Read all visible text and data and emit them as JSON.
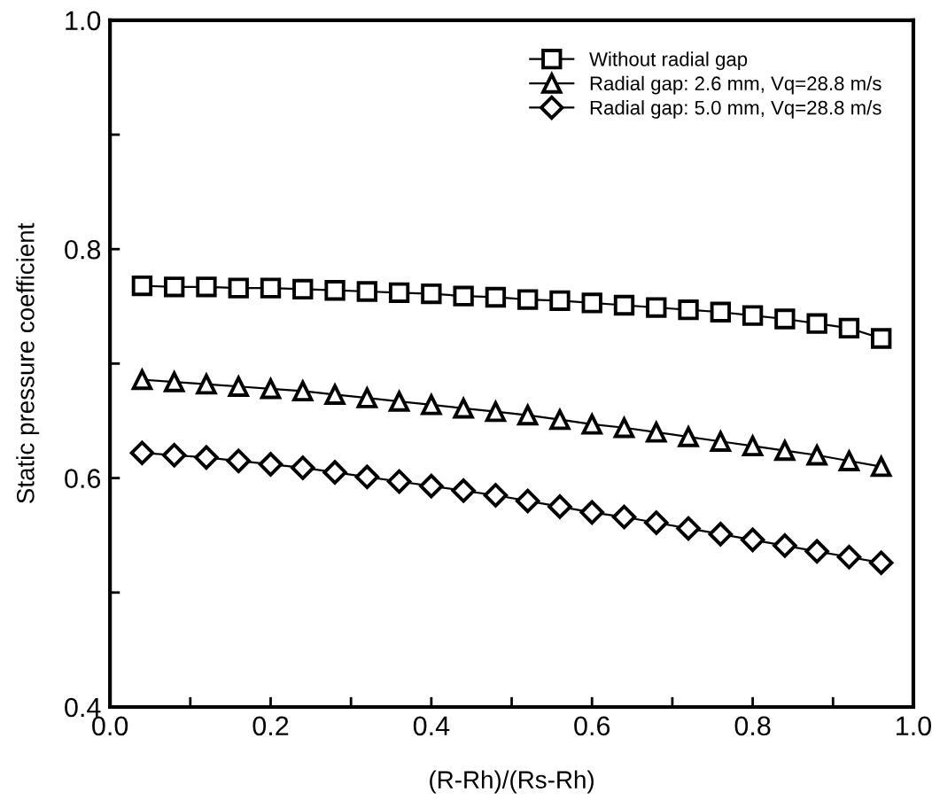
{
  "chart_data": {
    "type": "line",
    "xlabel": "(R-Rh)/(Rs-Rh)",
    "ylabel": "Static pressure coefficient",
    "x": [
      0.04,
      0.08,
      0.12,
      0.16,
      0.2,
      0.24,
      0.28,
      0.32,
      0.36,
      0.4,
      0.44,
      0.48,
      0.52,
      0.56,
      0.6,
      0.64,
      0.68,
      0.72,
      0.76,
      0.8,
      0.84,
      0.88,
      0.92,
      0.96
    ],
    "series": [
      {
        "name": "Without radial gap",
        "color": "#000000",
        "marker": "square",
        "values": [
          0.768,
          0.767,
          0.767,
          0.766,
          0.766,
          0.765,
          0.764,
          0.763,
          0.762,
          0.761,
          0.759,
          0.758,
          0.756,
          0.755,
          0.753,
          0.751,
          0.749,
          0.747,
          0.745,
          0.742,
          0.739,
          0.735,
          0.731,
          0.722
        ]
      },
      {
        "name": "Radial gap: 2.6 mm, Vq=28.8 m/s",
        "color": "#000000",
        "marker": "triangle",
        "values": [
          0.686,
          0.684,
          0.682,
          0.68,
          0.678,
          0.676,
          0.673,
          0.67,
          0.667,
          0.664,
          0.661,
          0.658,
          0.655,
          0.651,
          0.647,
          0.644,
          0.64,
          0.636,
          0.632,
          0.628,
          0.624,
          0.62,
          0.615,
          0.61
        ]
      },
      {
        "name": "Radial gap: 5.0 mm, Vq=28.8 m/s",
        "color": "#000000",
        "marker": "diamond",
        "values": [
          0.622,
          0.62,
          0.618,
          0.615,
          0.612,
          0.609,
          0.605,
          0.601,
          0.597,
          0.593,
          0.589,
          0.585,
          0.58,
          0.575,
          0.57,
          0.566,
          0.561,
          0.556,
          0.551,
          0.546,
          0.541,
          0.536,
          0.531,
          0.526
        ]
      }
    ],
    "xlim": [
      0.0,
      1.0
    ],
    "ylim": [
      0.4,
      1.0
    ],
    "xticks": [
      {
        "value": 0.0,
        "label": "0.0"
      },
      {
        "value": 0.1,
        "label": null
      },
      0.2,
      {
        "value": 0.3,
        "label": null
      },
      0.4,
      {
        "value": 0.5,
        "label": null
      },
      0.6,
      {
        "value": 0.7,
        "label": null
      },
      0.8,
      {
        "value": 0.9,
        "label": null
      },
      {
        "value": 1.0,
        "label": "1.0"
      }
    ],
    "yticks": [
      0.4,
      {
        "value": 0.5,
        "label": null
      },
      0.6,
      {
        "value": 0.7,
        "label": null
      },
      0.8,
      {
        "value": 0.9,
        "label": null
      },
      {
        "value": 1.0,
        "label": "1.0"
      }
    ],
    "line_style": "solid",
    "grid": false,
    "legend": "top right"
  }
}
